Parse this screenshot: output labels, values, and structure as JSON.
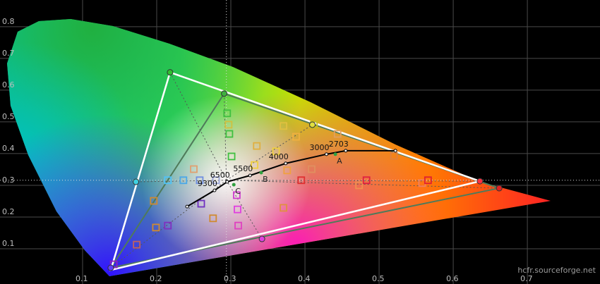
{
  "chart_data": {
    "type": "scatter",
    "xlim": [
      -0.0114,
      0.798
    ],
    "ylim": [
      -0.011,
      0.884
    ],
    "xticks": [
      0.1,
      0.2,
      0.3,
      0.4,
      0.5,
      0.6,
      0.7
    ],
    "yticks": [
      0.1,
      0.2,
      0.3,
      0.4,
      0.5,
      0.6,
      0.7,
      0.8
    ],
    "grid": true,
    "grid_color": "#4a4a4a",
    "crosshair": {
      "x": 0.294,
      "y": 0.316
    },
    "reference_gamut": {
      "color": "#ffffff",
      "x": [
        0.218,
        0.636,
        0.138
      ],
      "y": [
        0.656,
        0.313,
        0.033
      ]
    },
    "measured_gamut": {
      "color": "#4f7a5a",
      "x": [
        0.291,
        0.662,
        0.138
      ],
      "y": [
        0.589,
        0.291,
        0.04
      ]
    },
    "planckian": {
      "color": "#000000",
      "x": [
        0.241,
        0.278,
        0.295,
        0.326,
        0.374,
        0.429,
        0.455,
        0.522
      ],
      "y": [
        0.233,
        0.284,
        0.311,
        0.331,
        0.369,
        0.398,
        0.409,
        0.409
      ],
      "labels": [
        null,
        "9300",
        "6500",
        "5500",
        "4000",
        "3000",
        "2703",
        null
      ]
    },
    "illuminants": {
      "labels": [
        "A",
        "B",
        "C"
      ],
      "x": [
        0.441,
        0.341,
        0.304
      ],
      "y": [
        0.398,
        0.34,
        0.302
      ]
    },
    "circles": {
      "x": [
        0.218,
        0.172,
        0.41,
        0.342,
        0.662,
        0.291,
        0.138,
        0.636
      ],
      "y": [
        0.656,
        0.311,
        0.491,
        0.131,
        0.291,
        0.589,
        0.04,
        0.313
      ],
      "colors": [
        "#30c030",
        "#40d0e0",
        "#e0e040",
        "#e040e0",
        "#e02020",
        "#40b040",
        "#6040ff",
        "#ff3040"
      ]
    },
    "squares": {
      "x": [
        0.215,
        0.236,
        0.258,
        0.28,
        0.25,
        0.196,
        0.199,
        0.173,
        0.215,
        0.26,
        0.276,
        0.309,
        0.308,
        0.31,
        0.332,
        0.335,
        0.361,
        0.371,
        0.388,
        0.412,
        0.376,
        0.409,
        0.371,
        0.395,
        0.444,
        0.473,
        0.483,
        0.52,
        0.558,
        0.566,
        0.295,
        0.297,
        0.298,
        0.301,
        0.142
      ],
      "y": [
        0.316,
        0.316,
        0.316,
        0.316,
        0.351,
        0.251,
        0.167,
        0.113,
        0.173,
        0.242,
        0.196,
        0.224,
        0.269,
        0.173,
        0.364,
        0.424,
        0.407,
        0.487,
        0.453,
        0.491,
        0.347,
        0.351,
        0.229,
        0.316,
        0.462,
        0.3,
        0.316,
        0.393,
        0.307,
        0.316,
        0.527,
        0.491,
        0.462,
        0.391,
        0.051
      ],
      "colors": [
        "#4fc3f7",
        "#4aa8e8",
        "#6f8fe0",
        "#9aa5d8",
        "#e0a070",
        "#d08a30",
        "#d08a30",
        "#c06060",
        "#8030c0",
        "#7030c0",
        "#d08a30",
        "#e040e0",
        "#d040d0",
        "#e040c0",
        "#f0d040",
        "#e0b040",
        "#f0d040",
        "#e0c040",
        "#f0b040",
        "#c0c020",
        "#f0a040",
        "#e09060",
        "#e09040",
        "#e03030",
        "#e0a060",
        "#f09050",
        "#e02040",
        "#e08040",
        "#f08060",
        "#e02030",
        "#40c040",
        "#d0c040",
        "#40c040",
        "#40c040",
        "#9020c0"
      ]
    },
    "watermark": "hcfr.sourceforge.net"
  }
}
